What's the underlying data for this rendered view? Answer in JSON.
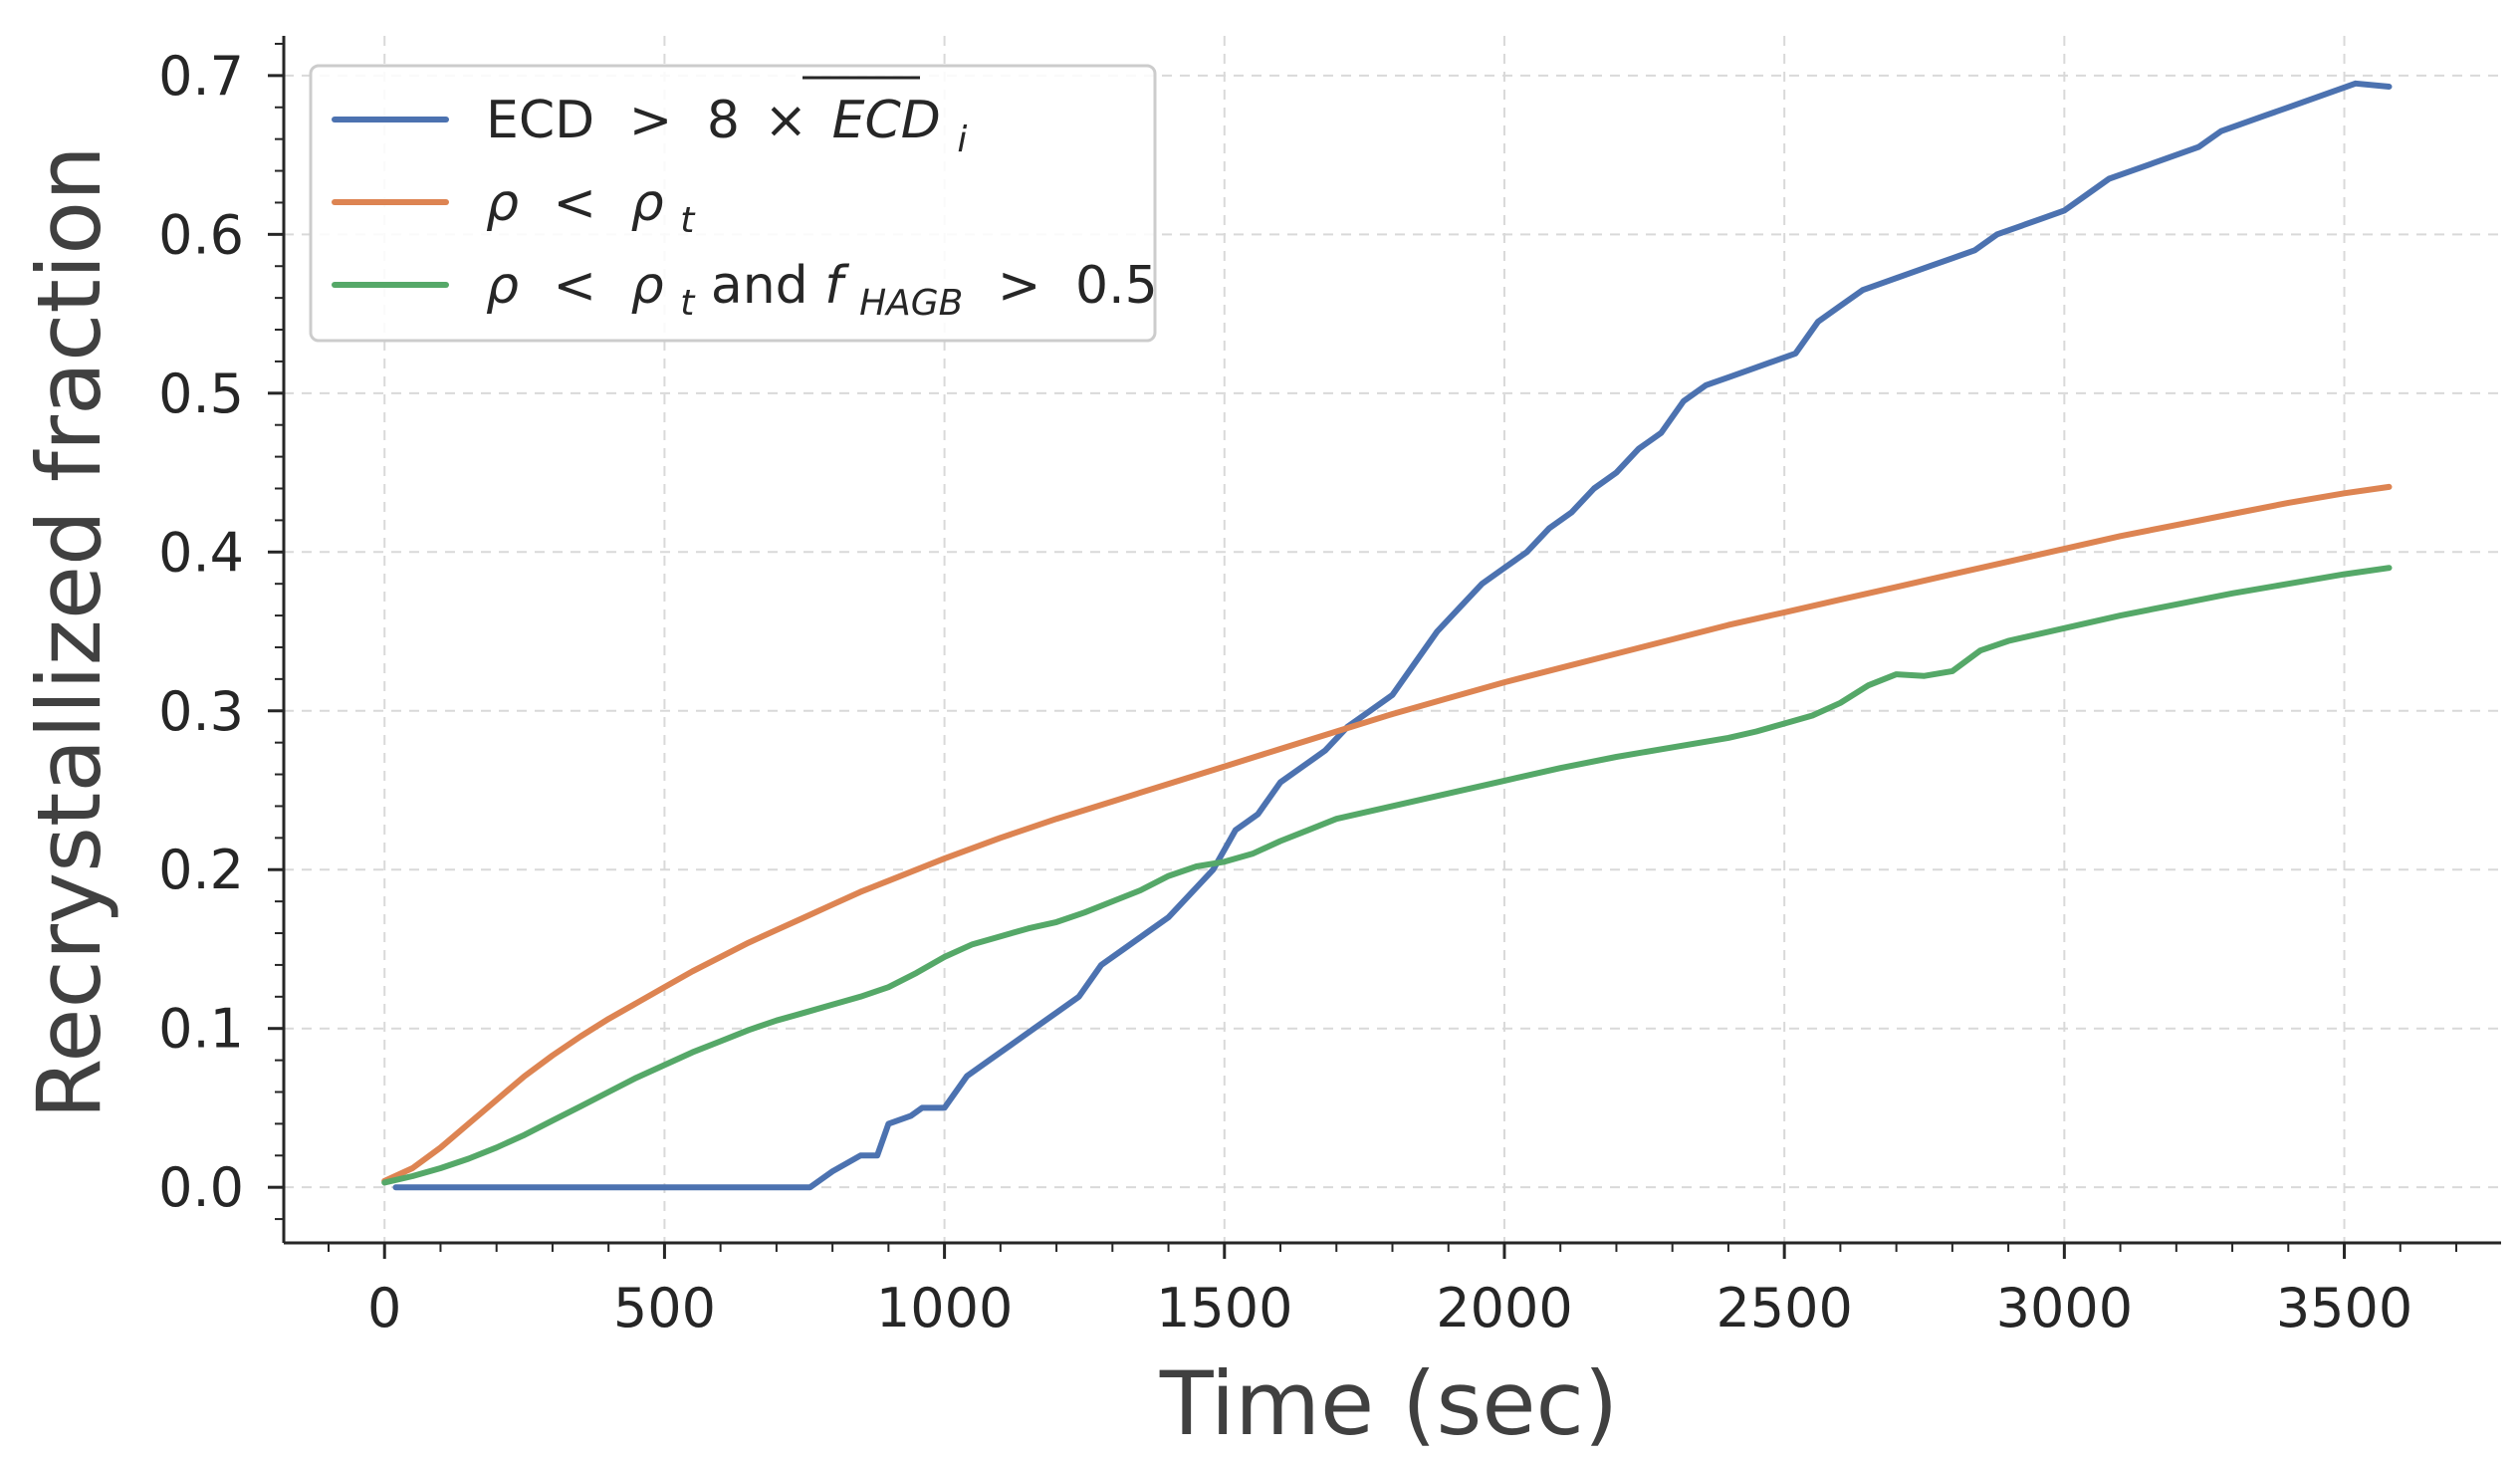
{
  "chart_data": {
    "type": "line",
    "title": "",
    "xlabel": "Time (sec)",
    "ylabel": "Recrystallized fraction",
    "xlim": [
      -180,
      3780
    ],
    "ylim": [
      -0.035,
      0.725
    ],
    "xticks": [
      0,
      500,
      1000,
      1500,
      2000,
      2500,
      3000,
      3500
    ],
    "xtick_labels": [
      "0",
      "500",
      "1000",
      "1500",
      "2000",
      "2500",
      "3000",
      "3500"
    ],
    "yticks": [
      0.0,
      0.1,
      0.2,
      0.3,
      0.4,
      0.5,
      0.6,
      0.7
    ],
    "ytick_labels": [
      "0.0",
      "0.1",
      "0.2",
      "0.3",
      "0.4",
      "0.5",
      "0.6",
      "0.7"
    ],
    "grid": true,
    "legend_position": "top-left",
    "series": [
      {
        "name": "ECD > 8×ECD_i",
        "legend": {
          "pre": "ECD",
          "op": ">",
          "num": "8",
          "times": "×",
          "bar": "ECD",
          "sub": "i"
        },
        "color": "#4c72b0",
        "x": [
          20,
          100,
          200,
          300,
          400,
          500,
          600,
          700,
          760,
          800,
          850,
          880,
          900,
          940,
          960,
          1000,
          1040,
          1080,
          1120,
          1160,
          1200,
          1240,
          1280,
          1320,
          1360,
          1400,
          1440,
          1480,
          1520,
          1540,
          1560,
          1600,
          1640,
          1680,
          1720,
          1760,
          1800,
          1840,
          1880,
          1920,
          1960,
          2000,
          2040,
          2080,
          2120,
          2160,
          2200,
          2240,
          2280,
          2320,
          2360,
          2400,
          2440,
          2480,
          2520,
          2560,
          2600,
          2640,
          2680,
          2720,
          2760,
          2800,
          2840,
          2880,
          2920,
          2960,
          3000,
          3040,
          3080,
          3120,
          3160,
          3200,
          3240,
          3280,
          3320,
          3360,
          3400,
          3440,
          3480,
          3520,
          3580
        ],
        "y": [
          0.0,
          0.0,
          0.0,
          0.0,
          0.0,
          0.0,
          0.0,
          0.0,
          0.0,
          0.01,
          0.02,
          0.02,
          0.04,
          0.045,
          0.05,
          0.05,
          0.07,
          0.08,
          0.09,
          0.1,
          0.11,
          0.12,
          0.14,
          0.15,
          0.16,
          0.17,
          0.185,
          0.2,
          0.225,
          0.23,
          0.235,
          0.255,
          0.265,
          0.275,
          0.29,
          0.3,
          0.31,
          0.33,
          0.35,
          0.365,
          0.38,
          0.39,
          0.4,
          0.415,
          0.425,
          0.44,
          0.45,
          0.465,
          0.475,
          0.495,
          0.505,
          0.51,
          0.515,
          0.52,
          0.525,
          0.545,
          0.555,
          0.565,
          0.57,
          0.575,
          0.58,
          0.585,
          0.59,
          0.6,
          0.605,
          0.61,
          0.615,
          0.625,
          0.635,
          0.64,
          0.645,
          0.65,
          0.655,
          0.665,
          0.67,
          0.675,
          0.68,
          0.685,
          0.69,
          0.695,
          0.693
        ]
      },
      {
        "name": "ρ < ρ_t",
        "legend": {
          "pre": "ρ",
          "op": "<",
          "rho": "ρ",
          "sub": "t"
        },
        "color": "#dd8452",
        "x": [
          0,
          50,
          100,
          150,
          200,
          250,
          300,
          350,
          400,
          450,
          500,
          550,
          600,
          650,
          700,
          750,
          800,
          850,
          900,
          1000,
          1100,
          1200,
          1300,
          1400,
          1500,
          1600,
          1700,
          1800,
          1900,
          2000,
          2100,
          2200,
          2300,
          2400,
          2500,
          2600,
          2700,
          2800,
          2900,
          3000,
          3100,
          3200,
          3300,
          3400,
          3500,
          3580
        ],
        "y": [
          0.004,
          0.012,
          0.025,
          0.04,
          0.055,
          0.07,
          0.083,
          0.095,
          0.106,
          0.116,
          0.126,
          0.136,
          0.145,
          0.154,
          0.162,
          0.17,
          0.178,
          0.186,
          0.193,
          0.207,
          0.22,
          0.232,
          0.243,
          0.254,
          0.265,
          0.276,
          0.287,
          0.298,
          0.308,
          0.318,
          0.327,
          0.336,
          0.345,
          0.354,
          0.362,
          0.37,
          0.378,
          0.386,
          0.394,
          0.402,
          0.41,
          0.417,
          0.424,
          0.431,
          0.437,
          0.441
        ]
      },
      {
        "name": "ρ < ρ_t and f_HAGB > 0.5",
        "legend": {
          "pre": "ρ",
          "op": "<",
          "rho": "ρ",
          "sub": "t",
          "mid": " and ",
          "f": "f",
          "fsub": "HAGB",
          "op2": ">",
          "val": "0.5"
        },
        "color": "#55a868",
        "x": [
          0,
          50,
          100,
          150,
          200,
          250,
          300,
          350,
          400,
          450,
          500,
          550,
          600,
          650,
          700,
          750,
          800,
          850,
          900,
          950,
          1000,
          1050,
          1100,
          1150,
          1200,
          1250,
          1300,
          1350,
          1400,
          1450,
          1500,
          1550,
          1600,
          1650,
          1700,
          1800,
          1900,
          2000,
          2100,
          2200,
          2300,
          2400,
          2450,
          2500,
          2550,
          2600,
          2650,
          2700,
          2750,
          2800,
          2850,
          2900,
          3000,
          3100,
          3200,
          3300,
          3400,
          3500,
          3580
        ],
        "y": [
          0.003,
          0.007,
          0.012,
          0.018,
          0.025,
          0.033,
          0.042,
          0.051,
          0.06,
          0.069,
          0.077,
          0.085,
          0.092,
          0.099,
          0.105,
          0.11,
          0.115,
          0.12,
          0.126,
          0.135,
          0.145,
          0.153,
          0.158,
          0.163,
          0.167,
          0.173,
          0.18,
          0.187,
          0.196,
          0.202,
          0.205,
          0.21,
          0.218,
          0.225,
          0.232,
          0.24,
          0.248,
          0.256,
          0.264,
          0.271,
          0.277,
          0.283,
          0.287,
          0.292,
          0.297,
          0.305,
          0.316,
          0.323,
          0.322,
          0.325,
          0.338,
          0.344,
          0.352,
          0.36,
          0.367,
          0.374,
          0.38,
          0.386,
          0.39
        ]
      }
    ]
  }
}
